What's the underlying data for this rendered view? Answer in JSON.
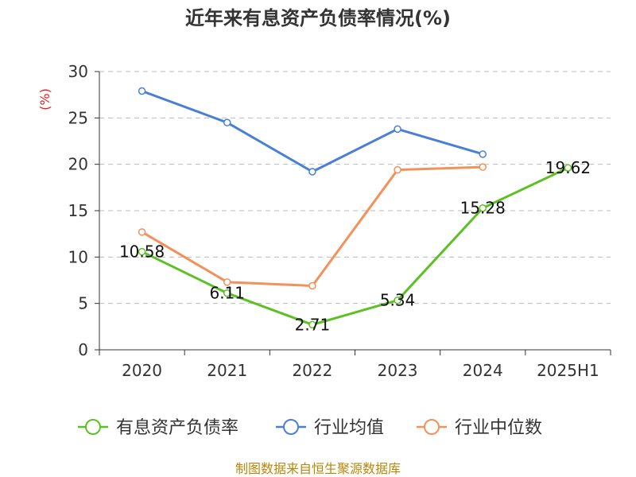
{
  "chart_data": {
    "type": "line",
    "title": "近年来有息资产负债率情况(%)",
    "ylabel": "(%)",
    "xlabel": "",
    "categories": [
      "2020",
      "2021",
      "2022",
      "2023",
      "2024",
      "2025H1"
    ],
    "ylim": [
      0,
      30
    ],
    "yticks": [
      0,
      5,
      10,
      15,
      20,
      25,
      30
    ],
    "grid": true,
    "legend_position": "bottom",
    "series": [
      {
        "name": "有息资产负债率",
        "color": "#5cc123",
        "values": [
          10.58,
          6.11,
          2.71,
          5.34,
          15.28,
          19.62
        ],
        "labels": [
          "10.58",
          "6.11",
          "2.71",
          "5.34",
          "15.28",
          "19.62"
        ]
      },
      {
        "name": "行业均值",
        "color": "#4a7fd8",
        "values": [
          27.9,
          24.5,
          19.2,
          23.8,
          21.1,
          null
        ]
      },
      {
        "name": "行业中位数",
        "color": "#f4905a",
        "values": [
          12.7,
          7.3,
          6.9,
          19.4,
          19.7,
          null
        ]
      }
    ]
  },
  "footer": {
    "source": "制图数据来自恒生聚源数据库"
  }
}
